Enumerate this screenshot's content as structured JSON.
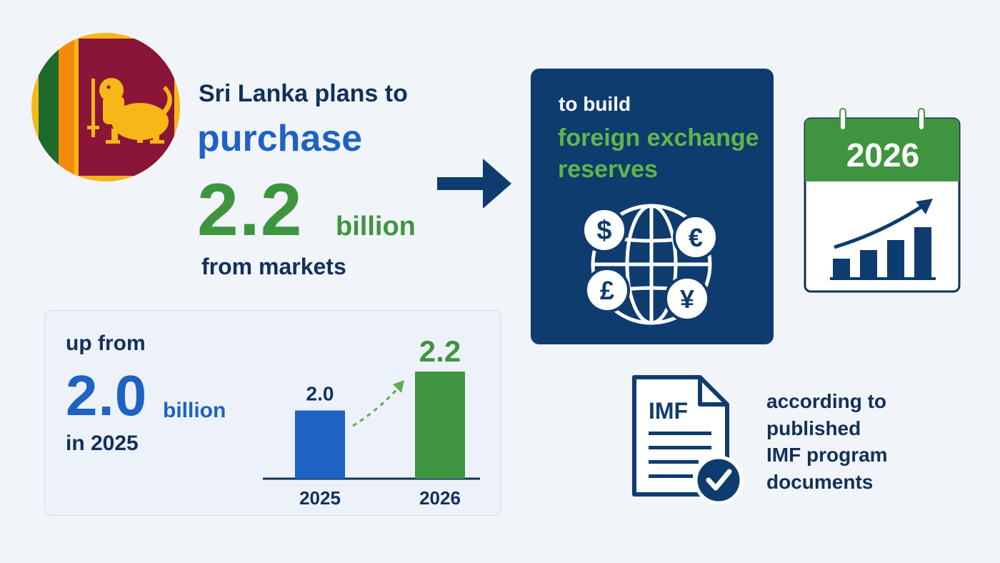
{
  "headline": {
    "line1": "Sri Lanka plans to",
    "line2": "purchase",
    "amount": "2.2",
    "unit": "billion",
    "line4": "from markets"
  },
  "reserves_box": {
    "intro": "to build",
    "goal_line1": "foreign exchange",
    "goal_line2": "reserves",
    "currency_symbols": [
      "$",
      "€",
      "£",
      "¥"
    ]
  },
  "calendar": {
    "year": "2026"
  },
  "comparison": {
    "line1": "up from",
    "amount": "2.0",
    "unit": "billion",
    "line3": "in 2025"
  },
  "chart_data": {
    "type": "bar",
    "categories": [
      "2025",
      "2026"
    ],
    "values": [
      2.0,
      2.2
    ],
    "value_labels": [
      "2.0",
      "2.2"
    ]
  },
  "source": {
    "doc_label": "IMF",
    "lines": [
      "according to",
      "published",
      "IMF program",
      "documents"
    ]
  },
  "colors": {
    "navy": "#0e3c6e",
    "blue": "#1e62c4",
    "green": "#3f953f",
    "flag_maroon": "#8a1538",
    "flag_gold": "#f7b718",
    "flag_orange": "#f58a0a",
    "flag_green": "#1c6b2c"
  }
}
